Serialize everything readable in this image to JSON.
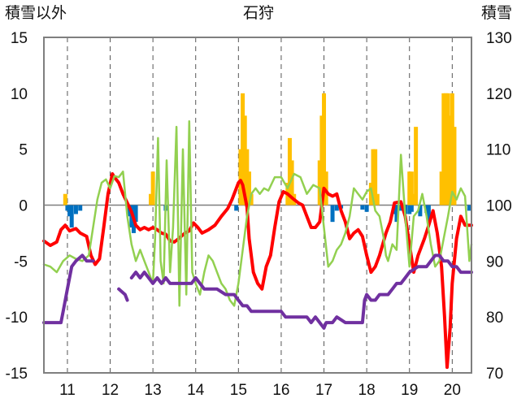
{
  "chart_data": {
    "type": "line",
    "title": "石狩",
    "ylabel_left": "積雪以外",
    "ylabel_right": "積雪",
    "x_ticks": [
      "11",
      "12",
      "13",
      "14",
      "15",
      "16",
      "17",
      "18",
      "19",
      "20"
    ],
    "xlim": [
      10.45,
      20.45
    ],
    "ylim_left": [
      -15,
      15
    ],
    "ylim_right": [
      70,
      130
    ],
    "y_ticks_left": [
      "15",
      "10",
      "5",
      "0",
      "-5",
      "-10",
      "-15"
    ],
    "y_ticks_right": [
      "130",
      "120",
      "110",
      "100",
      "90",
      "80",
      "70"
    ],
    "grid": "vertical dashed at day ticks",
    "colors": {
      "red": "#ff0000",
      "green": "#92d050",
      "purple": "#7030a0",
      "orange": "#ffc000",
      "blue": "#0070c0",
      "grid": "#555555"
    },
    "series": [
      {
        "color": "red",
        "axis": "left",
        "x": [
          10.45,
          10.6,
          10.75,
          10.85,
          10.95,
          11.05,
          11.2,
          11.3,
          11.45,
          11.55,
          11.65,
          11.75,
          11.85,
          11.95,
          12.05,
          12.1,
          12.2,
          12.3,
          12.4,
          12.5,
          12.6,
          12.7,
          12.8,
          12.9,
          13.0,
          13.1,
          13.2,
          13.3,
          13.4,
          13.5,
          13.6,
          13.75,
          13.85,
          13.95,
          14.05,
          14.15,
          14.3,
          14.45,
          14.6,
          14.75,
          14.85,
          14.95,
          15.0,
          15.05,
          15.1,
          15.2,
          15.25,
          15.35,
          15.45,
          15.55,
          15.65,
          15.75,
          15.85,
          15.95,
          16.05,
          16.15,
          16.3,
          16.4,
          16.5,
          16.6,
          16.7,
          16.8,
          16.9,
          17.0,
          17.1,
          17.2,
          17.3,
          17.4,
          17.5,
          17.6,
          17.7,
          17.8,
          17.9,
          18.0,
          18.1,
          18.2,
          18.3,
          18.45,
          18.55,
          18.65,
          18.8,
          18.9,
          19.0,
          19.1,
          19.2,
          19.35,
          19.45,
          19.55,
          19.65,
          19.75,
          19.82,
          19.88,
          19.95,
          20.0,
          20.1,
          20.2,
          20.3,
          20.45
        ],
        "y": [
          -3.2,
          -3.6,
          -3.3,
          -2.2,
          -1.8,
          -2.3,
          -2.1,
          -2.5,
          -2.8,
          -4.5,
          -5.3,
          -4.8,
          -2.0,
          1.0,
          2.8,
          2.5,
          2.0,
          1.0,
          0.2,
          -0.6,
          -1.8,
          -2.2,
          -2.0,
          -2.2,
          -2.0,
          -2.2,
          -2.5,
          -2.6,
          -3.2,
          -3.3,
          -3.0,
          -2.5,
          -2.3,
          -1.6,
          -2.0,
          -2.5,
          -2.2,
          -1.8,
          -1.0,
          -0.3,
          0.5,
          1.5,
          2.0,
          2.2,
          1.8,
          -0.2,
          -3.0,
          -6.0,
          -7.0,
          -7.5,
          -5.5,
          -4.5,
          -2.0,
          0.3,
          1.2,
          1.0,
          0.5,
          0.2,
          0.0,
          -1.0,
          -2.0,
          -2.0,
          -1.5,
          1.5,
          1.0,
          0.8,
          1.0,
          -0.5,
          -1.5,
          -3.0,
          -2.5,
          -2.2,
          -2.8,
          -4.5,
          -6.0,
          -5.5,
          -4.5,
          -2.5,
          -1.5,
          0.2,
          0.3,
          -1.0,
          -3.5,
          -6.0,
          -4.5,
          -3.0,
          -1.8,
          -0.5,
          -2.5,
          -5.5,
          -10.0,
          -14.5,
          -11.0,
          -7.0,
          -3.0,
          -1.0,
          -1.8,
          -1.8
        ]
      },
      {
        "color": "green",
        "axis": "left",
        "x": [
          10.45,
          10.6,
          10.75,
          10.9,
          11.05,
          11.2,
          11.35,
          11.5,
          11.6,
          11.7,
          11.8,
          11.9,
          12.0,
          12.1,
          12.2,
          12.3,
          12.4,
          12.5,
          12.6,
          12.7,
          12.8,
          12.9,
          13.0,
          13.05,
          13.12,
          13.18,
          13.25,
          13.32,
          13.4,
          13.47,
          13.55,
          13.62,
          13.7,
          13.78,
          13.85,
          13.92,
          14.0,
          14.1,
          14.2,
          14.3,
          14.4,
          14.5,
          14.6,
          14.7,
          14.8,
          14.9,
          15.0,
          15.1,
          15.2,
          15.3,
          15.4,
          15.5,
          15.6,
          15.7,
          15.85,
          16.0,
          16.15,
          16.3,
          16.45,
          16.6,
          16.75,
          16.9,
          17.0,
          17.1,
          17.2,
          17.3,
          17.4,
          17.5,
          17.6,
          17.7,
          17.8,
          17.9,
          18.0,
          18.1,
          18.2,
          18.3,
          18.4,
          18.45,
          18.5,
          18.6,
          18.7,
          18.8,
          18.9,
          19.0,
          19.1,
          19.2,
          19.3,
          19.4,
          19.5,
          19.6,
          19.7,
          19.8,
          19.9,
          20.0,
          20.1,
          20.2,
          20.3,
          20.4,
          20.45
        ],
        "y": [
          -5.3,
          -5.5,
          -6.0,
          -5.0,
          -4.5,
          -4.8,
          -5.0,
          -4.5,
          -2.0,
          0.5,
          2.0,
          2.3,
          1.5,
          2.6,
          2.5,
          3.0,
          -1.0,
          -3.5,
          -5.0,
          -4.0,
          -5.0,
          -6.0,
          -7.0,
          -3.0,
          6.0,
          -5.0,
          -7.0,
          4.0,
          -6.0,
          -2.0,
          7.0,
          -9.0,
          5.0,
          -8.0,
          7.5,
          -6.0,
          -7.0,
          -8.0,
          -6.0,
          -4.5,
          -5.0,
          -6.0,
          -7.0,
          -7.5,
          -8.5,
          -9.0,
          -7.0,
          -4.0,
          -1.0,
          1.0,
          1.5,
          1.0,
          1.5,
          1.3,
          2.5,
          2.5,
          1.5,
          2.8,
          2.5,
          1.0,
          1.8,
          1.5,
          -2.0,
          -5.5,
          -5.0,
          -4.0,
          -3.5,
          -2.5,
          -1.0,
          1.5,
          1.0,
          0.5,
          1.2,
          1.5,
          -0.5,
          -1.0,
          -3.0,
          -4.5,
          -5.0,
          -3.5,
          -4.0,
          4.5,
          -1.0,
          -5.5,
          -1.0,
          -0.5,
          1.0,
          -1.0,
          -3.5,
          -5.5,
          -5.0,
          -3.0,
          -1.0,
          1.2,
          0.5,
          1.5,
          0.8,
          -5.0,
          -3.5
        ]
      },
      {
        "color": "purple",
        "axis": "right",
        "x": [
          10.45,
          10.85,
          10.9,
          11.0,
          11.1,
          11.2,
          11.35,
          11.45,
          11.55,
          11.6
        ],
        "y": [
          79,
          79,
          81,
          85,
          89,
          90,
          91,
          90,
          90,
          90
        ]
      },
      {
        "color": "purple",
        "axis": "right",
        "x": [
          12.2,
          12.35,
          12.4
        ],
        "y": [
          85,
          84,
          83
        ]
      },
      {
        "color": "purple",
        "axis": "right",
        "x": [
          12.5,
          12.6,
          12.7,
          12.8,
          12.9,
          13.0,
          13.1,
          13.2,
          13.3,
          13.4,
          13.5,
          13.6,
          13.7,
          13.9,
          14.0,
          14.1,
          14.2,
          14.3,
          14.5,
          14.7,
          14.9,
          15.0,
          15.1,
          15.2,
          15.3,
          15.5,
          15.7,
          16.0,
          16.1,
          16.2,
          16.3,
          16.6,
          16.7,
          16.8,
          16.9,
          17.0,
          17.05,
          17.1,
          17.2,
          17.3,
          17.5,
          17.6,
          17.8,
          17.9,
          17.95,
          18.0,
          18.1,
          18.2,
          18.3,
          18.5,
          18.6,
          18.7,
          18.8,
          18.9,
          19.0,
          19.2,
          19.4,
          19.5,
          19.6,
          19.7,
          19.8,
          19.9,
          20.0,
          20.1,
          20.2,
          20.3,
          20.45
        ],
        "y": [
          87,
          88,
          87,
          88,
          87,
          86,
          87,
          86,
          87,
          86,
          86,
          86,
          86,
          86,
          87,
          86,
          85,
          85,
          85,
          84,
          84,
          83,
          82,
          82,
          81,
          81,
          81,
          81,
          80,
          80,
          80,
          80,
          79,
          80,
          79,
          78,
          79,
          79,
          79,
          80,
          79,
          79,
          79,
          79,
          83,
          84,
          83,
          83,
          84,
          84,
          85,
          86,
          86,
          87,
          88,
          89,
          89,
          90,
          91,
          91,
          90,
          90,
          89,
          89,
          88,
          88,
          88
        ]
      },
      {
        "color": "orange",
        "axis": "left",
        "bars": true,
        "x": [
          10.95,
          12.95,
          13.0,
          15.05,
          15.1,
          15.15,
          15.2,
          15.25,
          15.3,
          16.15,
          16.2,
          16.25,
          16.3,
          16.9,
          16.95,
          17.0,
          17.05,
          18.1,
          18.15,
          18.2,
          18.25,
          19.0,
          19.05,
          19.1,
          19.15,
          19.75,
          19.8,
          19.85,
          19.9,
          19.95,
          20.0,
          20.05
        ],
        "y": [
          1.0,
          1.0,
          3.0,
          5.0,
          10.0,
          8.0,
          5.0,
          3.0,
          1.0,
          2.0,
          6.0,
          4.0,
          1.0,
          4.0,
          8.0,
          10.0,
          3.0,
          2.0,
          5.0,
          5.0,
          1.0,
          3.0,
          3.0,
          1.0,
          7.0,
          3.0,
          10.0,
          10.0,
          10.0,
          8.0,
          10.0,
          7.0
        ]
      },
      {
        "color": "blue",
        "axis": "left",
        "bars": true,
        "x": [
          11.0,
          11.05,
          11.1,
          11.2,
          11.3,
          12.45,
          12.5,
          12.55,
          12.6,
          13.3,
          14.95,
          17.2,
          17.3,
          17.4,
          17.9,
          18.0,
          18.65,
          18.7,
          18.8,
          18.9,
          19.0,
          19.05,
          19.25,
          19.4,
          19.45,
          20.4
        ],
        "y": [
          -0.5,
          -1.0,
          -2.0,
          -0.8,
          -0.5,
          -1.0,
          -2.0,
          -2.5,
          -1.5,
          -0.5,
          -0.5,
          -1.5,
          -0.5,
          -0.3,
          -0.4,
          -0.6,
          -0.8,
          -1.5,
          -0.5,
          -0.8,
          -0.8,
          -0.6,
          -1.0,
          -0.7,
          -1.5,
          -0.5
        ]
      }
    ]
  }
}
